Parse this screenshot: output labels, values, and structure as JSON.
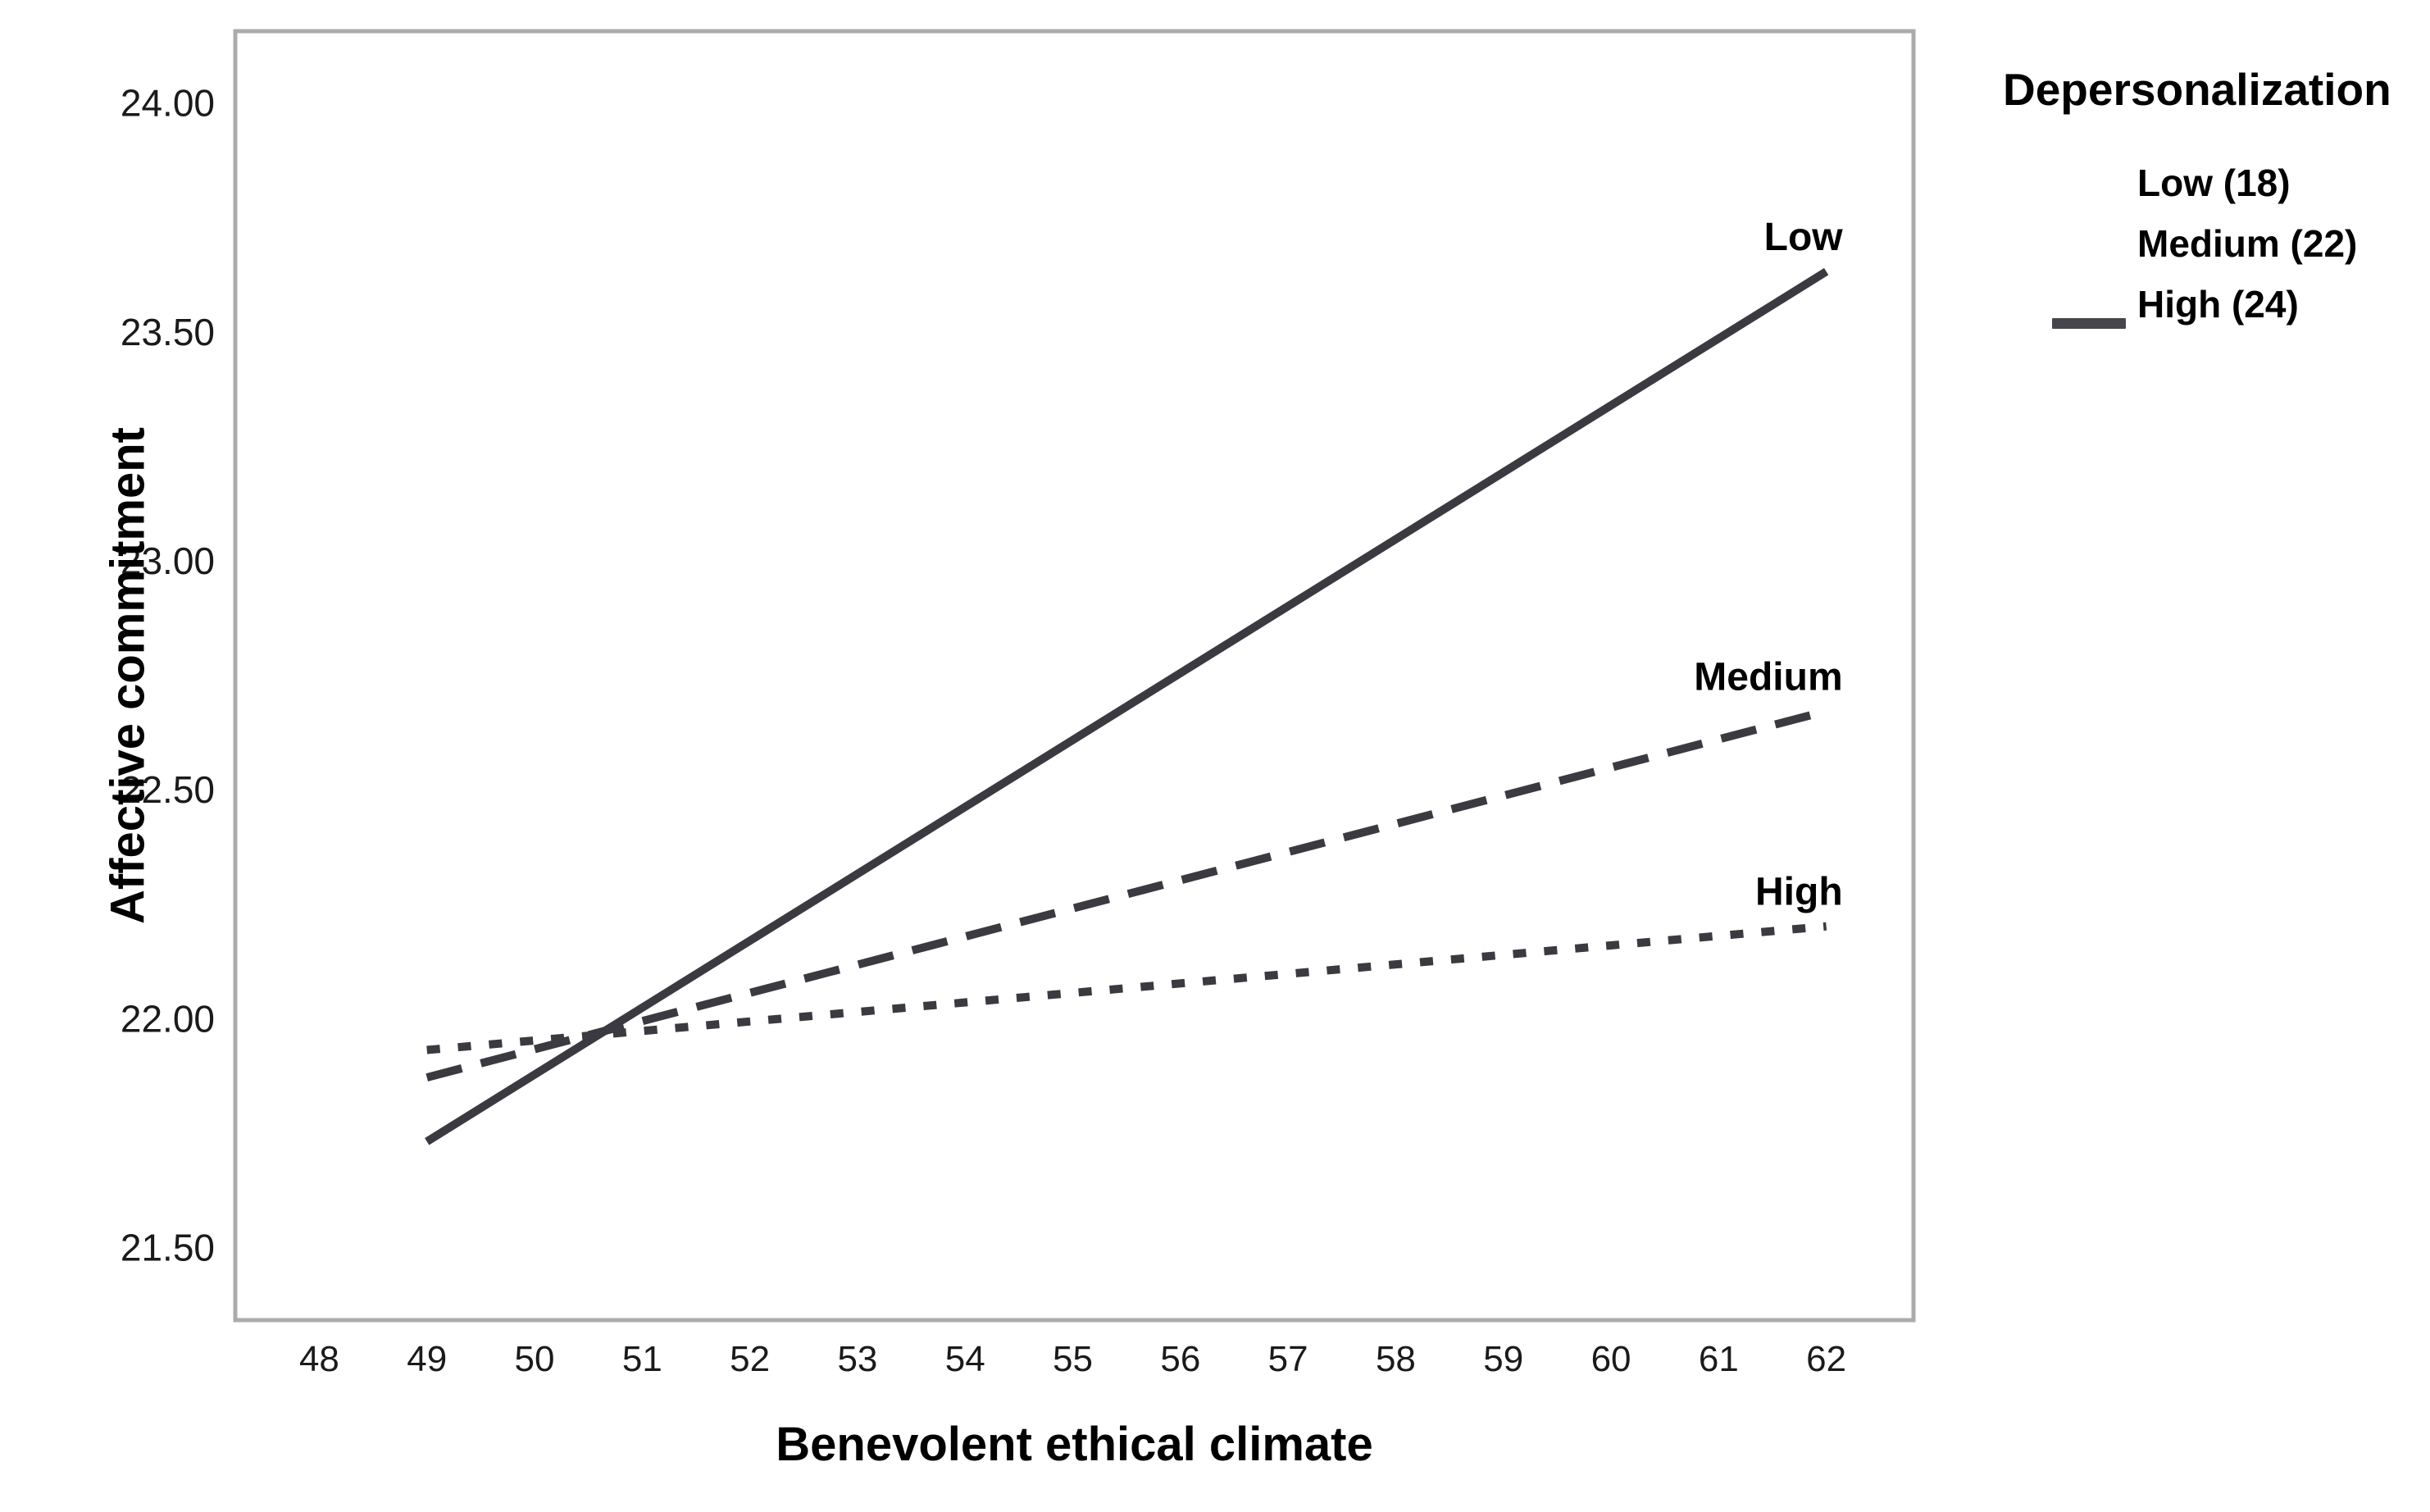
{
  "figure": {
    "background": "#ffffff",
    "frame_color": "#ababab",
    "line_color": "#3a3a40",
    "tick_text_color": "#1a1a1a",
    "title_text_color": "#000000",
    "legend_swatch_color": "#46464c"
  },
  "chart_data": {
    "type": "line",
    "title": "",
    "xlabel": "Benevolent ethical climate",
    "ylabel": "Affective commitment",
    "x_range": [
      47.22,
      62.81
    ],
    "y_range": [
      21.34,
      24.155
    ],
    "grid": false,
    "x_ticks": [
      {
        "value": 48,
        "label": "48"
      },
      {
        "value": 49,
        "label": "49"
      },
      {
        "value": 50,
        "label": "50"
      },
      {
        "value": 51,
        "label": "51"
      },
      {
        "value": 52,
        "label": "52"
      },
      {
        "value": 53,
        "label": "53"
      },
      {
        "value": 54,
        "label": "54"
      },
      {
        "value": 55,
        "label": "55"
      },
      {
        "value": 56,
        "label": "56"
      },
      {
        "value": 57,
        "label": "57"
      },
      {
        "value": 58,
        "label": "58"
      },
      {
        "value": 59,
        "label": "59"
      },
      {
        "value": 60,
        "label": "60"
      },
      {
        "value": 61,
        "label": "61"
      },
      {
        "value": 62,
        "label": "62"
      }
    ],
    "y_ticks": [
      {
        "value": 24.0,
        "label": "24.00"
      },
      {
        "value": 23.5,
        "label": "23.50"
      },
      {
        "value": 23.0,
        "label": "23.00"
      },
      {
        "value": 22.5,
        "label": "22.50"
      },
      {
        "value": 22.0,
        "label": "22.00"
      },
      {
        "value": 21.5,
        "label": "21.50"
      }
    ],
    "series": [
      {
        "name": "Low",
        "end_label": "Low",
        "style": "solid",
        "color": "#3a3a40",
        "x": [
          49,
          62
        ],
        "values": [
          21.73,
          23.63
        ]
      },
      {
        "name": "Medium",
        "end_label": "Medium",
        "style": "dashed",
        "color": "#3a3a40",
        "x": [
          49,
          62
        ],
        "values": [
          21.87,
          22.67
        ]
      },
      {
        "name": "High",
        "end_label": "High",
        "style": "dotted",
        "color": "#3a3a40",
        "x": [
          49,
          62
        ],
        "values": [
          21.93,
          22.2
        ]
      }
    ],
    "legend": {
      "title": "Depersonalization",
      "items": [
        "Low (18)",
        "Medium (22)",
        "High (24)"
      ],
      "position": "top-right-outside",
      "swatch_style": "solid-line"
    }
  }
}
